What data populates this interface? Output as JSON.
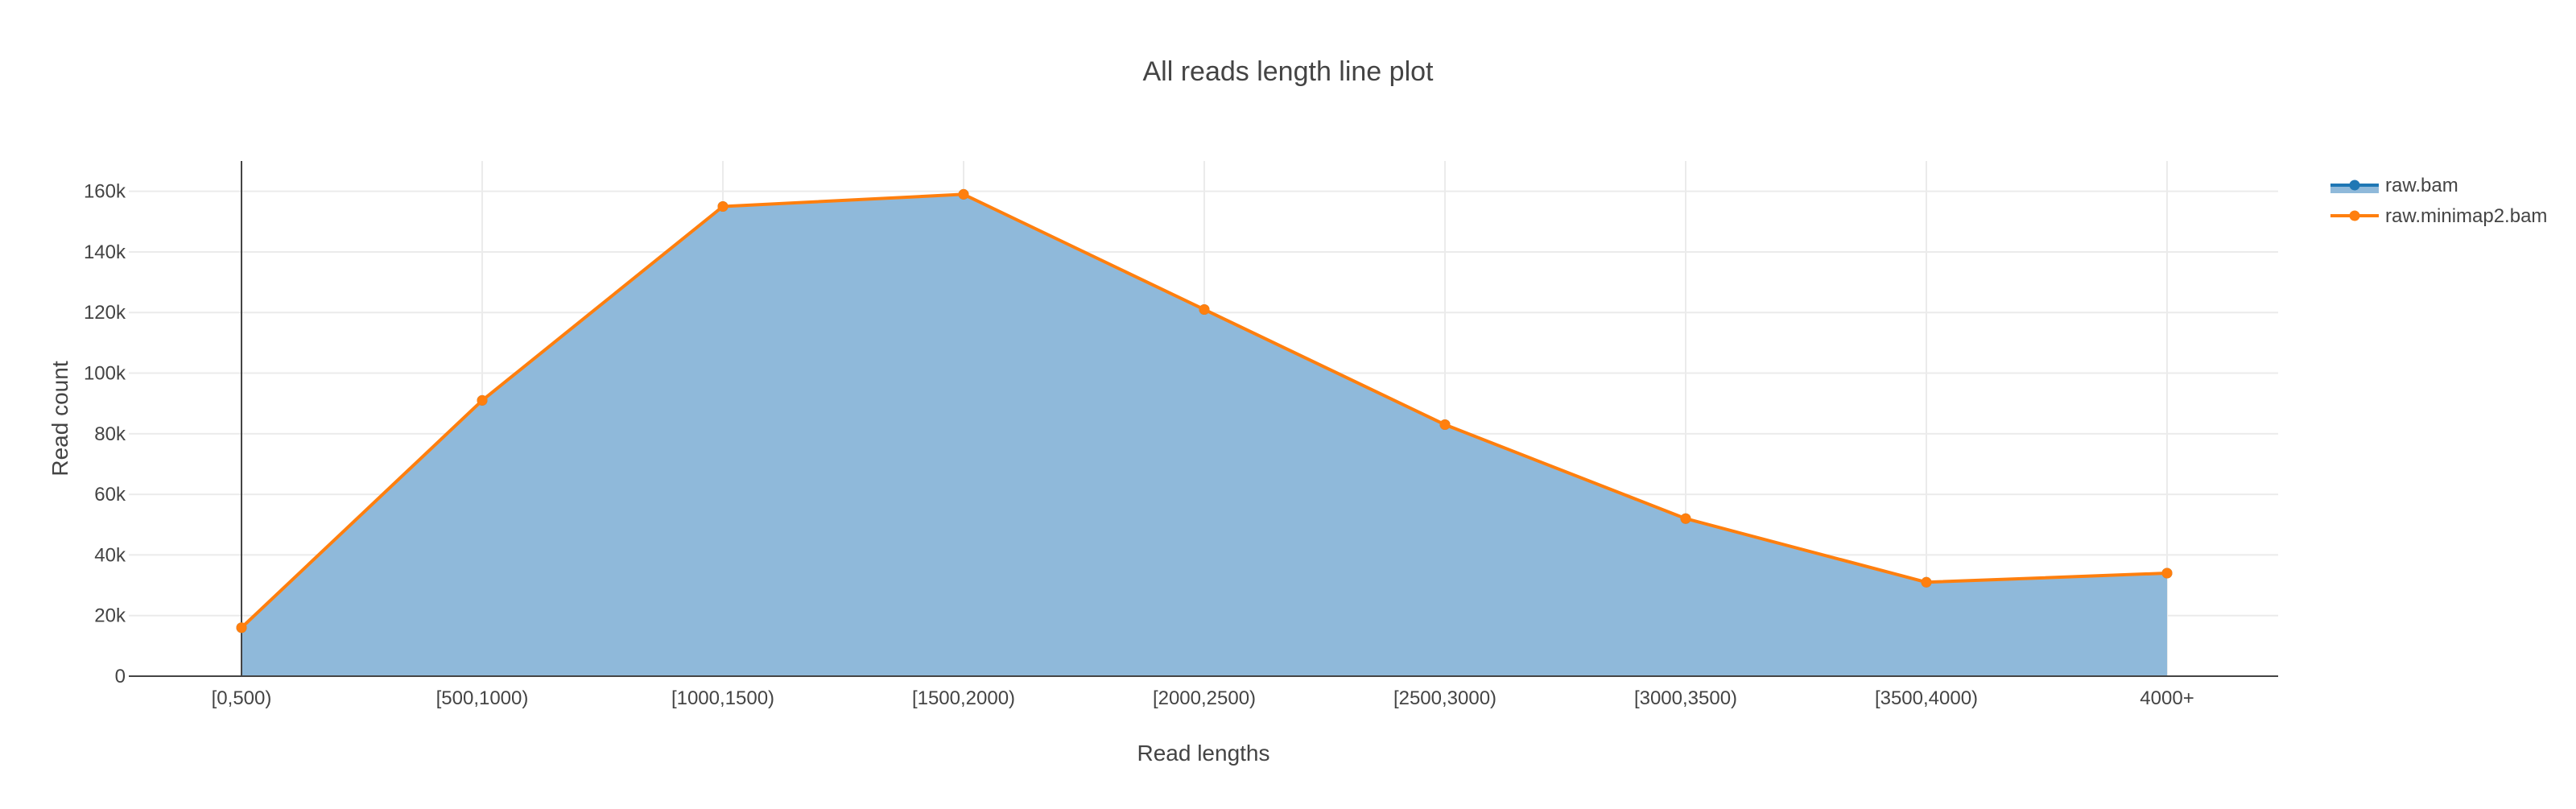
{
  "chart_data": {
    "type": "area",
    "title": "All reads length line plot",
    "xlabel": "Read lengths",
    "ylabel": "Read count",
    "categories": [
      "[0,500)",
      "[500,1000)",
      "[1000,1500)",
      "[1500,2000)",
      "[2000,2500)",
      "[2500,3000)",
      "[3000,3500)",
      "[3500,4000)",
      "4000+"
    ],
    "ylim": [
      0,
      170000
    ],
    "yticks": [
      0,
      20000,
      40000,
      60000,
      80000,
      100000,
      120000,
      140000,
      160000
    ],
    "ytick_labels": [
      "0",
      "20k",
      "40k",
      "60k",
      "80k",
      "100k",
      "120k",
      "140k",
      "160k"
    ],
    "grid": true,
    "legend_position": "top-right",
    "series": [
      {
        "name": "raw.bam",
        "style": "filled area with markers",
        "line_color": "#1f77b4",
        "fill_color": "#8fb9da",
        "values": [
          16000,
          91000,
          155000,
          159000,
          121000,
          83000,
          52000,
          31000,
          34000
        ]
      },
      {
        "name": "raw.minimap2.bam",
        "style": "line with markers",
        "line_color": "#ff7f0e",
        "values": [
          16000,
          91000,
          155000,
          159000,
          121000,
          83000,
          52000,
          31000,
          34000
        ]
      }
    ]
  }
}
